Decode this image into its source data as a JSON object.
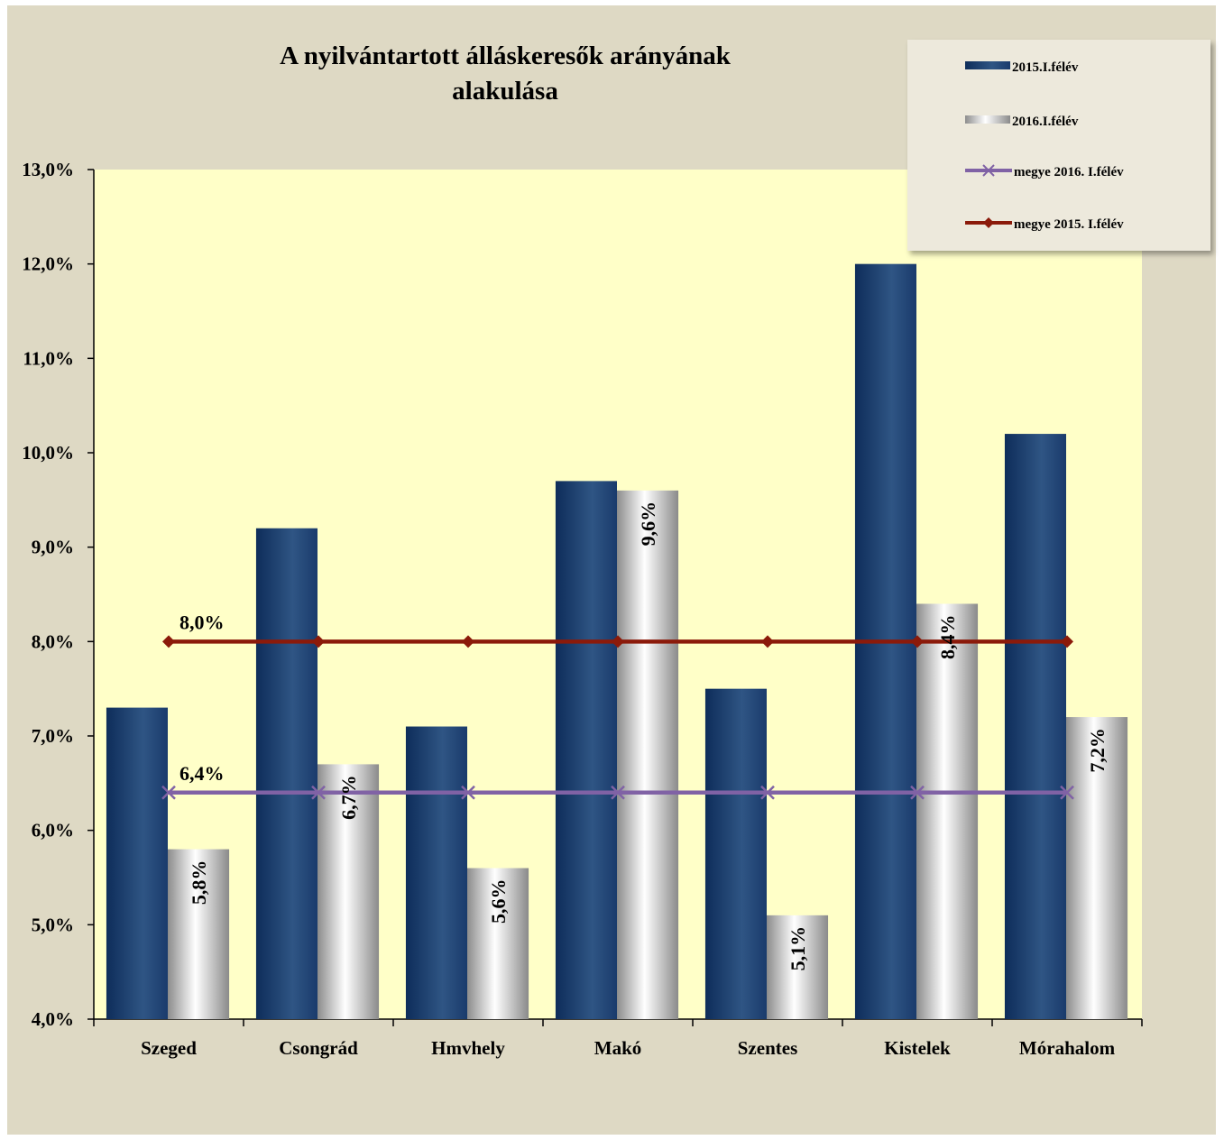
{
  "chart_data": {
    "type": "bar",
    "title": [
      "A nyilvántartott álláskeresők arányának",
      "alakulása"
    ],
    "categories": [
      "Szeged",
      "Csongrád",
      "Hmvhely",
      "Makó",
      "Szentes",
      "Kistelek",
      "Mórahalom"
    ],
    "ylim": [
      0.04,
      0.13
    ],
    "yticks": [
      "4,0%",
      "5,0%",
      "6,0%",
      "7,0%",
      "8,0%",
      "9,0%",
      "10,0%",
      "11,0%",
      "12,0%",
      "13,0%"
    ],
    "grid": false,
    "legend_position": "top-right",
    "series": [
      {
        "name": "2015.I.félév",
        "kind": "bar",
        "values": [
          0.073,
          0.092,
          0.071,
          0.097,
          0.075,
          0.12,
          0.102
        ],
        "color": "#1f3f6e",
        "labels": [
          "",
          "",
          "",
          "",
          "",
          "",
          ""
        ]
      },
      {
        "name": "2016.I.félév",
        "kind": "bar",
        "values": [
          0.058,
          0.067,
          0.056,
          0.096,
          0.051,
          0.084,
          0.072
        ],
        "color": "#c8c8c8",
        "labels": [
          "5,8%",
          "6,7%",
          "5,6%",
          "9,6%",
          "5,1%",
          "8,4%",
          "7,2%"
        ]
      },
      {
        "name": "megye 2016. I.félév",
        "kind": "line",
        "values": [
          0.064,
          0.064,
          0.064,
          0.064,
          0.064,
          0.064,
          0.064
        ],
        "color": "#8062a5",
        "marker": "x",
        "label": "6,4%"
      },
      {
        "name": "megye 2015. I.félév",
        "kind": "line",
        "values": [
          0.08,
          0.08,
          0.08,
          0.08,
          0.08,
          0.08,
          0.08
        ],
        "color": "#8b1a0a",
        "marker": "diamond",
        "label": "8,0%"
      }
    ],
    "colors": {
      "plot_background": "#ffffc8",
      "chart_background": "#ded9c4",
      "legend_background": "#ede9dc"
    }
  }
}
